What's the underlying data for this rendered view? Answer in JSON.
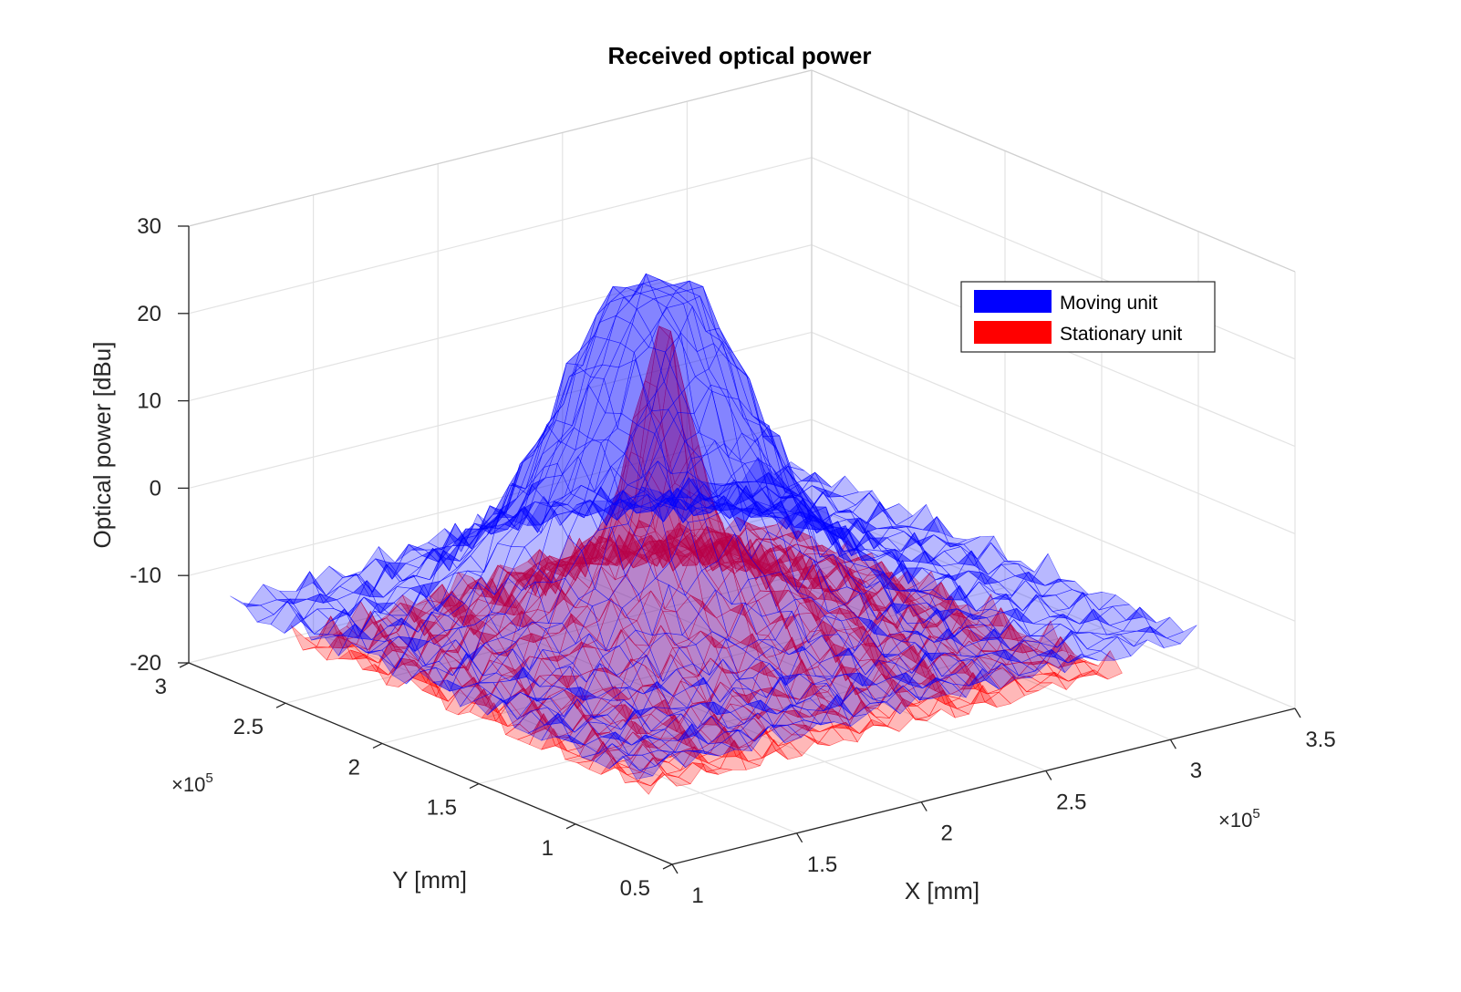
{
  "chart_data": {
    "type": "surface3d",
    "title": "Received optical power",
    "xlabel": "X [mm]",
    "ylabel": "Y [mm]",
    "zlabel": "Optical power [dBu]",
    "x_multiplier": "×10",
    "x_multiplier_exp": "5",
    "y_multiplier": "×10",
    "y_multiplier_exp": "5",
    "xlim": [
      1,
      3.5
    ],
    "ylim": [
      0.5,
      3
    ],
    "zlim": [
      -20,
      30
    ],
    "x_ticks": [
      1,
      1.5,
      2,
      2.5,
      3,
      3.5
    ],
    "x_tick_labels": [
      "1",
      "1.5",
      "2",
      "2.5",
      "3",
      "3.5"
    ],
    "y_ticks": [
      0.5,
      1,
      1.5,
      2,
      2.5,
      3
    ],
    "y_tick_labels": [
      "0.5",
      "1",
      "1.5",
      "2",
      "2.5",
      "3"
    ],
    "z_ticks": [
      -20,
      -10,
      0,
      10,
      20,
      30
    ],
    "z_tick_labels": [
      "-20",
      "-10",
      "0",
      "10",
      "20",
      "30"
    ],
    "grid": true,
    "legend_position": "top-right",
    "series": [
      {
        "name": "Moving unit",
        "color": "#0000ff",
        "x_range": [
          1.05,
          3.3
        ],
        "y_range": [
          0.75,
          2.85
        ],
        "floor": -13,
        "peak": 24,
        "peak_at": [
          2.1,
          2.0
        ]
      },
      {
        "name": "Stationary unit",
        "color": "#ff0000",
        "x_range": [
          1.1,
          3.0
        ],
        "y_range": [
          0.75,
          2.6
        ],
        "floor": -15,
        "peak": 21,
        "peak_at": [
          2.05,
          1.9
        ]
      }
    ]
  }
}
